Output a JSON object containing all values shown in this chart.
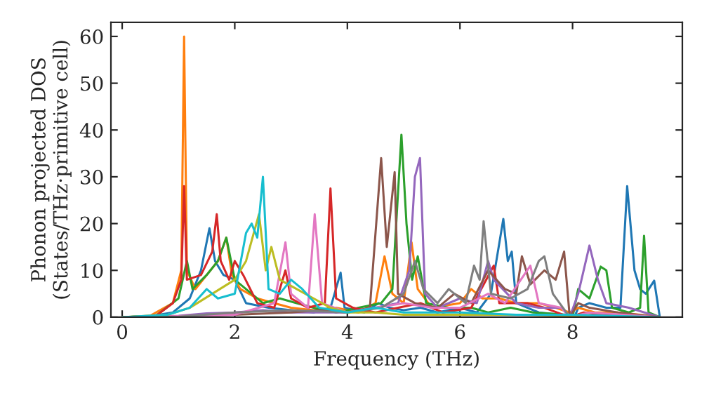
{
  "chart_data": {
    "type": "line",
    "xlabel": "Frequency (THz)",
    "ylabel": "Phonon projected DOS\n(States/THz·primitive cell)",
    "xlim": [
      -0.2,
      9.95
    ],
    "ylim": [
      0,
      63
    ],
    "xticks": [
      0,
      2,
      4,
      6,
      8
    ],
    "yticks": [
      0,
      10,
      20,
      30,
      40,
      50,
      60
    ],
    "grid": false,
    "marker": "none",
    "line_style": "solid",
    "series": [
      {
        "color": "#1f77b4",
        "x": [
          0,
          0.5,
          0.9,
          1.2,
          1.4,
          1.55,
          1.65,
          1.8,
          2.0,
          2.2,
          2.6,
          3.0,
          3.4,
          3.7,
          3.88,
          3.95,
          4.3,
          4.55,
          4.75,
          5.0,
          5.3,
          5.6,
          6.0,
          6.3,
          6.55,
          6.77,
          6.85,
          6.92,
          7.0,
          7.4,
          7.8,
          7.95,
          8.05,
          8.1,
          8.3,
          8.6,
          8.85,
          8.97,
          9.1,
          9.2,
          9.3,
          9.45,
          9.55
        ],
        "values": [
          0,
          0.2,
          1,
          4,
          10,
          19,
          12,
          9,
          8,
          3,
          2,
          1.5,
          1,
          2,
          9.5,
          2,
          1,
          3,
          2,
          1.5,
          2,
          1,
          2,
          1,
          5,
          21,
          12,
          14,
          3,
          1,
          0.5,
          0,
          0.5,
          2,
          3,
          2,
          2,
          28,
          10,
          6,
          5,
          7.8,
          0
        ]
      },
      {
        "color": "#ff7f0e",
        "x": [
          0,
          0.5,
          0.9,
          1.05,
          1.1,
          1.15,
          1.3,
          1.5,
          1.7,
          1.85,
          1.95,
          2.1,
          2.4,
          2.7,
          3.0,
          3.4,
          3.8,
          4.2,
          4.5,
          4.66,
          4.8,
          5.0,
          5.14,
          5.25,
          5.5,
          6.0,
          6.2,
          6.4,
          6.7,
          7.0,
          7.4,
          7.7,
          7.95,
          8.1,
          8.4,
          8.8,
          9.2,
          9.55
        ],
        "values": [
          0,
          0.3,
          3,
          10,
          60,
          10,
          6,
          9,
          12,
          17,
          9,
          6,
          4,
          3,
          2,
          1.5,
          2,
          1,
          3,
          13,
          5,
          3,
          16,
          6,
          2,
          3,
          6,
          4,
          4,
          3,
          3,
          2,
          1,
          2,
          1,
          1,
          0.5,
          0
        ]
      },
      {
        "color": "#2ca02c",
        "x": [
          0,
          0.6,
          1.0,
          1.15,
          1.25,
          1.5,
          1.7,
          1.85,
          2.0,
          2.3,
          2.5,
          2.8,
          3.1,
          3.4,
          3.8,
          4.2,
          4.6,
          4.8,
          4.96,
          5.05,
          5.15,
          5.25,
          5.4,
          5.8,
          6.2,
          6.5,
          6.9,
          7.3,
          7.9,
          8.0,
          8.1,
          8.3,
          8.5,
          8.6,
          8.7,
          9.0,
          9.2,
          9.27,
          9.35,
          9.55
        ],
        "values": [
          0,
          0.3,
          4,
          12,
          6,
          9,
          12,
          17,
          8,
          5,
          3,
          4,
          3,
          2,
          1,
          2,
          3,
          6,
          39,
          20,
          8,
          13,
          3,
          2,
          2,
          1,
          2,
          1,
          0.5,
          0,
          6,
          4,
          10.8,
          10,
          2,
          1,
          2,
          17.4,
          1,
          0
        ]
      },
      {
        "color": "#d62728",
        "x": [
          0,
          0.6,
          0.9,
          1.05,
          1.1,
          1.15,
          1.4,
          1.6,
          1.68,
          1.75,
          1.9,
          2.0,
          2.15,
          2.4,
          2.7,
          2.9,
          3.0,
          3.3,
          3.6,
          3.7,
          3.8,
          4.1,
          4.5,
          4.9,
          5.3,
          5.7,
          6.2,
          6.6,
          6.7,
          7.2,
          7.5,
          7.95,
          8.2,
          8.6,
          9.55
        ],
        "values": [
          0,
          0.3,
          3,
          8,
          28,
          8,
          9,
          14,
          22,
          12,
          8,
          12,
          9,
          3,
          2,
          10,
          4,
          2,
          3,
          27.5,
          4,
          2,
          1,
          2,
          3,
          1,
          2,
          11,
          3,
          3,
          2,
          0,
          1,
          0.5,
          0
        ]
      },
      {
        "color": "#9467bd",
        "x": [
          0,
          1.0,
          1.5,
          2.0,
          2.5,
          3.0,
          3.5,
          4.0,
          4.5,
          4.9,
          5.1,
          5.2,
          5.29,
          5.38,
          5.6,
          6.0,
          6.3,
          6.5,
          6.6,
          7.0,
          7.4,
          7.8,
          7.95,
          8.1,
          8.3,
          8.45,
          8.6,
          9.0,
          9.55
        ],
        "values": [
          0,
          0.3,
          0.8,
          1,
          1.5,
          1,
          1,
          1,
          2,
          3,
          10,
          30,
          34,
          5,
          2,
          4,
          3,
          12,
          8,
          3,
          2,
          2,
          0,
          5,
          15.3,
          8,
          3,
          2,
          0
        ]
      },
      {
        "color": "#8c564b",
        "x": [
          0,
          1.0,
          2.0,
          3.0,
          3.5,
          4.0,
          4.4,
          4.6,
          4.7,
          4.84,
          4.9,
          5.2,
          5.6,
          5.9,
          6.2,
          6.5,
          6.8,
          7.0,
          7.1,
          7.25,
          7.5,
          7.7,
          7.85,
          7.95,
          8.1,
          8.3,
          8.8,
          9.55
        ],
        "values": [
          0,
          0.2,
          0.5,
          1,
          1.5,
          1,
          2,
          34,
          15,
          31,
          5,
          3,
          2,
          5,
          3,
          10,
          6,
          5,
          13,
          7,
          10,
          8,
          14,
          0,
          3,
          2,
          1,
          0
        ]
      },
      {
        "color": "#e377c2",
        "x": [
          0,
          1.0,
          2.0,
          2.7,
          2.9,
          3.0,
          3.3,
          3.42,
          3.55,
          4.0,
          4.5,
          5.0,
          5.5,
          6.0,
          6.5,
          6.8,
          7.25,
          7.4,
          7.8,
          7.95,
          8.3,
          9.55
        ],
        "values": [
          0,
          0.2,
          0.5,
          3,
          16,
          5,
          2,
          22,
          3,
          1,
          2,
          3,
          2,
          2,
          5,
          3,
          11,
          3,
          2,
          0,
          1,
          0
        ]
      },
      {
        "color": "#7f7f7f",
        "x": [
          0,
          1.0,
          2.0,
          3.0,
          4.0,
          4.6,
          5.0,
          5.2,
          5.35,
          5.6,
          5.8,
          6.1,
          6.25,
          6.35,
          6.42,
          6.55,
          6.9,
          7.2,
          7.4,
          7.5,
          7.65,
          7.95,
          9.55
        ],
        "values": [
          0,
          0.1,
          1,
          1.5,
          1,
          2,
          5,
          12,
          6,
          3,
          6,
          3,
          11,
          8,
          20.5,
          5,
          4,
          6,
          12,
          13,
          5,
          0,
          0
        ]
      },
      {
        "color": "#bcbd22",
        "x": [
          0,
          0.8,
          1.2,
          1.6,
          2.0,
          2.2,
          2.43,
          2.55,
          2.65,
          2.8,
          3.1,
          3.4,
          3.7,
          4.0,
          4.5,
          5.0,
          6.0,
          7.0,
          9.55
        ],
        "values": [
          0,
          0.5,
          2,
          5,
          8,
          12,
          22,
          10,
          15,
          8,
          6,
          4,
          2,
          1,
          1,
          0.5,
          0.5,
          0.5,
          0
        ]
      },
      {
        "color": "#17becf",
        "x": [
          0,
          0.8,
          1.2,
          1.5,
          1.7,
          2.0,
          2.2,
          2.3,
          2.4,
          2.5,
          2.6,
          2.8,
          3.0,
          3.2,
          3.5,
          4.0,
          4.5,
          5.0,
          5.5,
          6.0,
          7.0,
          8.0,
          9.55
        ],
        "values": [
          0,
          0.5,
          2,
          6,
          4,
          5,
          18,
          20,
          17,
          30,
          6,
          5,
          8,
          6,
          2,
          1,
          2,
          1,
          1,
          1,
          0.5,
          0.5,
          0
        ]
      }
    ]
  }
}
